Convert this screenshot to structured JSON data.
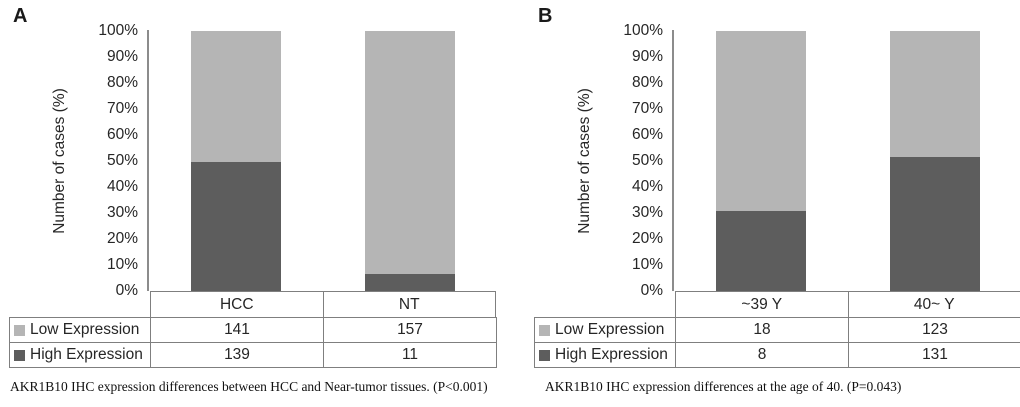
{
  "figure_bg": "#ffffff",
  "colors": {
    "low_expression": "#b5b5b5",
    "high_expression": "#5d5d5d",
    "axis_line": "#8c8c8c",
    "table_border": "#7f7f7f",
    "text": "#262626"
  },
  "panels": [
    {
      "label": "A",
      "ylabel": "Number of cases (%)",
      "yticks": [
        "100%",
        "90%",
        "80%",
        "70%",
        "60%",
        "50%",
        "40%",
        "30%",
        "20%",
        "10%",
        "0%"
      ],
      "categories": [
        "HCC",
        "NT"
      ],
      "rows": [
        {
          "name": "Low Expression",
          "swatch": "#b5b5b5",
          "values": [
            "141",
            "157"
          ]
        },
        {
          "name": "High Expression",
          "swatch": "#5d5d5d",
          "values": [
            "139",
            "11"
          ]
        }
      ],
      "caption": "AKR1B10 IHC expression differences between HCC and Near-tumor tissues. (P<0.001)"
    },
    {
      "label": "B",
      "ylabel": "Number of cases (%)",
      "yticks": [
        "100%",
        "90%",
        "80%",
        "70%",
        "60%",
        "50%",
        "40%",
        "30%",
        "20%",
        "10%",
        "0%"
      ],
      "categories": [
        "~39 Y",
        "40~ Y"
      ],
      "rows": [
        {
          "name": "Low Expression",
          "swatch": "#b5b5b5",
          "values": [
            "18",
            "123"
          ]
        },
        {
          "name": "High Expression",
          "swatch": "#5d5d5d",
          "values": [
            "8",
            "131"
          ]
        }
      ],
      "caption": "AKR1B10 IHC expression differences at the age of 40. (P=0.043)"
    }
  ],
  "chart_data": [
    {
      "type": "bar",
      "subtype": "100-percent-stacked-column",
      "panel": "A",
      "categories": [
        "HCC",
        "NT"
      ],
      "series": [
        {
          "name": "Low Expression",
          "values": [
            141,
            157
          ],
          "color": "#b5b5b5"
        },
        {
          "name": "High Expression",
          "values": [
            139,
            11
          ],
          "color": "#5d5d5d"
        }
      ],
      "high_expression_pct": [
        49.6,
        6.5
      ],
      "low_expression_pct": [
        50.4,
        93.5
      ],
      "title": "",
      "xlabel": "",
      "ylabel": "Number of cases (%)",
      "ylim": [
        0,
        100
      ],
      "ytick_step_pct": 10,
      "grid": false,
      "legend_position": "table-left-of-rows",
      "caption": "AKR1B10 IHC expression differences between HCC and Near-tumor tissues. (P<0.001)"
    },
    {
      "type": "bar",
      "subtype": "100-percent-stacked-column",
      "panel": "B",
      "categories": [
        "~39 Y",
        "40~ Y"
      ],
      "series": [
        {
          "name": "Low Expression",
          "values": [
            18,
            123
          ],
          "color": "#b5b5b5"
        },
        {
          "name": "High Expression",
          "values": [
            8,
            131
          ],
          "color": "#5d5d5d"
        }
      ],
      "high_expression_pct": [
        30.8,
        51.6
      ],
      "low_expression_pct": [
        69.2,
        48.4
      ],
      "title": "",
      "xlabel": "",
      "ylabel": "Number of cases (%)",
      "ylim": [
        0,
        100
      ],
      "ytick_step_pct": 10,
      "grid": false,
      "legend_position": "table-left-of-rows",
      "caption": "AKR1B10 IHC expression differences at the age of 40. (P=0.043)"
    }
  ]
}
